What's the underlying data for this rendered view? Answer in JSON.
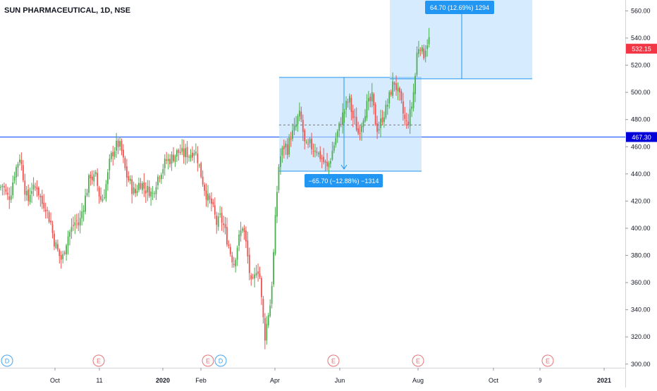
{
  "header": {
    "title": "SUN PHARMACEUTICAL, 1D, NSE"
  },
  "colors": {
    "up": "#26a69a",
    "up_candle": "#4caf50",
    "down": "#ef5350",
    "level_line": "#2962ff",
    "level_label_bg": "#0000d9",
    "price_label_bg": "#f23645",
    "box_fill": "#bbdefb",
    "box_stroke": "#2196f3",
    "measure_label_bg": "#2196f3",
    "axis_text": "#131722",
    "event_earnings": "#e57373",
    "event_dividend": "#42a5f5"
  },
  "chart_data": {
    "type": "candlestick",
    "symbol": "SUN PHARMACEUTICAL",
    "interval": "1D",
    "exchange": "NSE",
    "ylim": [
      300,
      565
    ],
    "y_ticks": [
      "300.00",
      "320.00",
      "340.00",
      "360.00",
      "380.00",
      "400.00",
      "420.00",
      "440.00",
      "460.00",
      "480.00",
      "500.00",
      "520.00",
      "540.00",
      "560.00"
    ],
    "x_ticks": [
      "Oct",
      "11",
      "2020",
      "Feb",
      "Apr",
      "Jun",
      "Aug",
      "Oct",
      "9",
      "2021"
    ],
    "horizontal_level": {
      "value": 467.3,
      "label": "467.30"
    },
    "last_price": {
      "value": 532.15,
      "label": "532.15"
    },
    "measurements": [
      {
        "label": "−65.70 (−12.88%) −1314",
        "change": -65.7,
        "percent": -12.88,
        "bars": -1314,
        "top": 511,
        "bottom": 442,
        "mid": 476
      },
      {
        "label": "64.70 (12.69%) 1294",
        "change": 64.7,
        "percent": 12.69,
        "bars": 1294,
        "top": 575,
        "bottom": 510
      }
    ],
    "events": [
      {
        "type": "dividend",
        "letter": "D",
        "near": "Aug 2019"
      },
      {
        "type": "earnings",
        "letter": "E",
        "near": "Nov 2019"
      },
      {
        "type": "earnings",
        "letter": "E",
        "near": "Feb 2020"
      },
      {
        "type": "dividend",
        "letter": "D",
        "near": "Feb 2020"
      },
      {
        "type": "earnings",
        "letter": "E",
        "near": "May 2020"
      },
      {
        "type": "earnings",
        "letter": "E",
        "near": "Aug 2020"
      },
      {
        "type": "earnings",
        "letter": "E",
        "near": "Nov 2020"
      }
    ],
    "close_path": [
      [
        0,
        430
      ],
      [
        4,
        432
      ],
      [
        8,
        426
      ],
      [
        12,
        422
      ],
      [
        16,
        428
      ],
      [
        20,
        440
      ],
      [
        24,
        446
      ],
      [
        28,
        453
      ],
      [
        32,
        442
      ],
      [
        36,
        426
      ],
      [
        40,
        420
      ],
      [
        44,
        430
      ],
      [
        48,
        428
      ],
      [
        52,
        432
      ],
      [
        56,
        424
      ],
      [
        60,
        418
      ],
      [
        64,
        418
      ],
      [
        68,
        410
      ],
      [
        72,
        404
      ],
      [
        76,
        392
      ],
      [
        80,
        386
      ],
      [
        84,
        380
      ],
      [
        88,
        376
      ],
      [
        92,
        386
      ],
      [
        96,
        394
      ],
      [
        100,
        398
      ],
      [
        104,
        402
      ],
      [
        108,
        406
      ],
      [
        112,
        402
      ],
      [
        116,
        412
      ],
      [
        120,
        420
      ],
      [
        124,
        430
      ],
      [
        128,
        440
      ],
      [
        132,
        436
      ],
      [
        136,
        438
      ],
      [
        140,
        426
      ],
      [
        144,
        420
      ],
      [
        148,
        426
      ],
      [
        152,
        436
      ],
      [
        156,
        450
      ],
      [
        160,
        456
      ],
      [
        164,
        460
      ],
      [
        168,
        462
      ],
      [
        172,
        458
      ],
      [
        176,
        446
      ],
      [
        180,
        438
      ],
      [
        184,
        434
      ],
      [
        188,
        428
      ],
      [
        192,
        426
      ],
      [
        196,
        432
      ],
      [
        200,
        434
      ],
      [
        204,
        430
      ],
      [
        208,
        428
      ],
      [
        212,
        428
      ],
      [
        216,
        424
      ],
      [
        220,
        432
      ],
      [
        224,
        438
      ],
      [
        228,
        442
      ],
      [
        232,
        446
      ],
      [
        236,
        450
      ],
      [
        240,
        450
      ],
      [
        244,
        452
      ],
      [
        248,
        454
      ],
      [
        252,
        456
      ],
      [
        256,
        456
      ],
      [
        260,
        454
      ],
      [
        264,
        456
      ],
      [
        268,
        454
      ],
      [
        272,
        456
      ],
      [
        276,
        458
      ],
      [
        280,
        452
      ],
      [
        284,
        442
      ],
      [
        288,
        434
      ],
      [
        292,
        426
      ],
      [
        296,
        420
      ],
      [
        300,
        418
      ],
      [
        304,
        410
      ],
      [
        308,
        402
      ],
      [
        312,
        408
      ],
      [
        316,
        404
      ],
      [
        320,
        396
      ],
      [
        324,
        388
      ],
      [
        328,
        380
      ],
      [
        332,
        374
      ],
      [
        336,
        386
      ],
      [
        340,
        394
      ],
      [
        344,
        402
      ],
      [
        348,
        392
      ],
      [
        352,
        376
      ],
      [
        356,
        358
      ],
      [
        360,
        360
      ],
      [
        364,
        372
      ],
      [
        368,
        368
      ],
      [
        372,
        340
      ],
      [
        376,
        320
      ],
      [
        380,
        336
      ],
      [
        384,
        346
      ],
      [
        388,
        380
      ],
      [
        392,
        420
      ],
      [
        396,
        450
      ],
      [
        400,
        456
      ],
      [
        404,
        462
      ],
      [
        408,
        458
      ],
      [
        412,
        468
      ],
      [
        416,
        470
      ],
      [
        420,
        476
      ],
      [
        424,
        484
      ],
      [
        428,
        478
      ],
      [
        432,
        462
      ],
      [
        436,
        458
      ],
      [
        440,
        462
      ],
      [
        444,
        458
      ],
      [
        448,
        460
      ],
      [
        452,
        454
      ],
      [
        456,
        452
      ],
      [
        460,
        448
      ],
      [
        464,
        444
      ],
      [
        468,
        450
      ],
      [
        472,
        458
      ],
      [
        476,
        466
      ],
      [
        480,
        472
      ],
      [
        484,
        480
      ],
      [
        488,
        486
      ],
      [
        492,
        492
      ],
      [
        496,
        494
      ],
      [
        500,
        482
      ],
      [
        504,
        478
      ],
      [
        508,
        470
      ],
      [
        512,
        476
      ],
      [
        516,
        484
      ],
      [
        520,
        490
      ],
      [
        524,
        492
      ],
      [
        528,
        496
      ],
      [
        532,
        480
      ],
      [
        536,
        472
      ],
      [
        540,
        478
      ],
      [
        544,
        484
      ],
      [
        548,
        488
      ],
      [
        552,
        496
      ],
      [
        556,
        504
      ],
      [
        560,
        508
      ],
      [
        564,
        500
      ],
      [
        568,
        494
      ],
      [
        572,
        484
      ],
      [
        576,
        476
      ],
      [
        580,
        480
      ],
      [
        584,
        490
      ],
      [
        588,
        506
      ],
      [
        592,
        532
      ],
      [
        596,
        536
      ],
      [
        600,
        526
      ],
      [
        604,
        534
      ],
      [
        608,
        540
      ],
      [
        612,
        532
      ]
    ]
  }
}
